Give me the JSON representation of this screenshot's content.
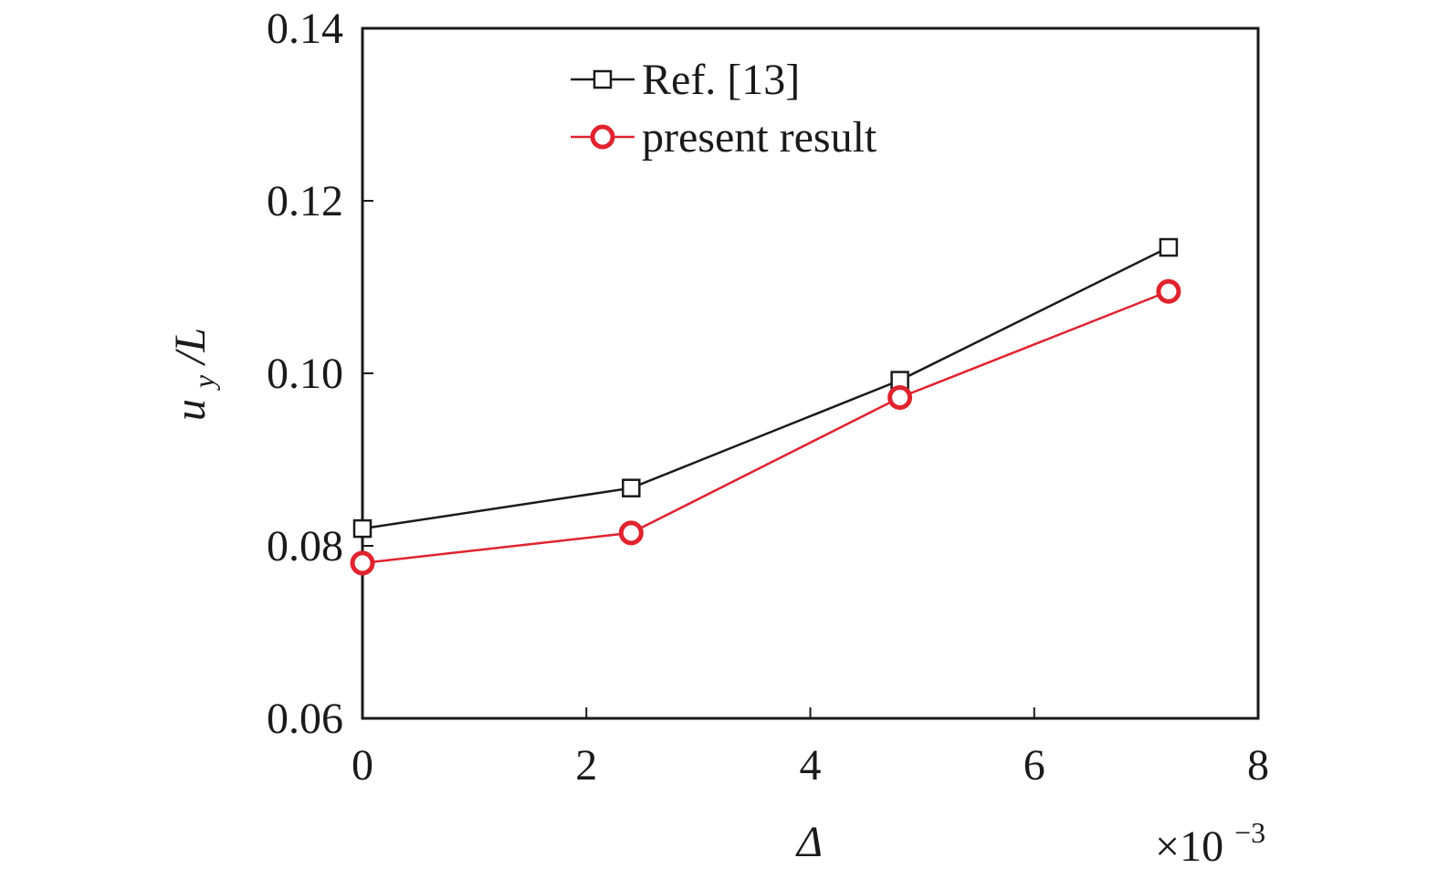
{
  "chart_data": {
    "type": "line",
    "xlabel": "Δ",
    "x_multiplier_label": "×10",
    "x_multiplier_exponent": "−3",
    "ylabel_var": "u",
    "ylabel_sub": "y",
    "ylabel_rest": "/L",
    "xlim": [
      0,
      8
    ],
    "ylim": [
      0.06,
      0.14
    ],
    "x_ticks": [
      0,
      2,
      4,
      6,
      8
    ],
    "x_tick_labels": [
      "0",
      "2",
      "4",
      "6",
      "8"
    ],
    "y_ticks": [
      0.06,
      0.08,
      0.1,
      0.12,
      0.14
    ],
    "y_tick_labels": [
      "0.06",
      "0.08",
      "0.10",
      "0.12",
      "0.14"
    ],
    "grid": false,
    "legend_position": "top",
    "series": [
      {
        "name": "Ref. [13]",
        "marker": "square",
        "color": "#1a1a1a",
        "x": [
          0,
          2.4,
          4.8,
          7.2
        ],
        "y": [
          0.082,
          0.0867,
          0.0992,
          0.1146
        ]
      },
      {
        "name": "present result",
        "marker": "circle",
        "color": "#e0232e",
        "x": [
          0,
          2.4,
          4.8,
          7.2
        ],
        "y": [
          0.078,
          0.0815,
          0.0972,
          0.1095
        ]
      }
    ]
  }
}
